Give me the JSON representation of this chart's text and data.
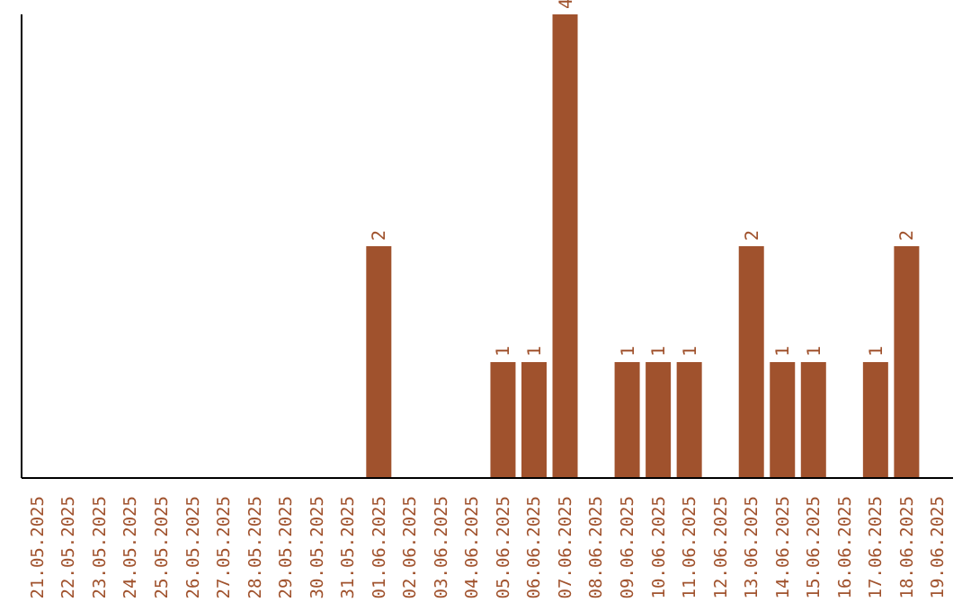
{
  "chart_data": {
    "type": "bar",
    "categories": [
      "21.05.2025",
      "22.05.2025",
      "23.05.2025",
      "24.05.2025",
      "25.05.2025",
      "26.05.2025",
      "27.05.2025",
      "28.05.2025",
      "29.05.2025",
      "30.05.2025",
      "31.05.2025",
      "01.06.2025",
      "02.06.2025",
      "03.06.2025",
      "04.06.2025",
      "05.06.2025",
      "06.06.2025",
      "07.06.2025",
      "08.06.2025",
      "09.06.2025",
      "10.06.2025",
      "11.06.2025",
      "12.06.2025",
      "13.06.2025",
      "14.06.2025",
      "15.06.2025",
      "16.06.2025",
      "17.06.2025",
      "18.06.2025",
      "19.06.2025"
    ],
    "values": [
      null,
      null,
      null,
      null,
      null,
      null,
      null,
      null,
      null,
      null,
      null,
      2,
      null,
      null,
      null,
      1,
      1,
      4,
      null,
      1,
      1,
      1,
      null,
      2,
      1,
      1,
      null,
      1,
      2,
      null
    ],
    "color": "#a0522d",
    "ylim": [
      0,
      4
    ],
    "tick_labels": "x",
    "data_labels": true
  }
}
